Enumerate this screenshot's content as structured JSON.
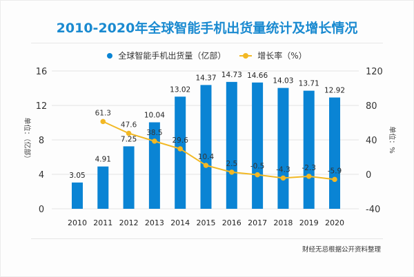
{
  "chart_data": {
    "type": "bar",
    "title": "2010-2020年全球智能手机出货量统计及增长情况",
    "categories": [
      "2010",
      "2011",
      "2012",
      "2013",
      "2014",
      "2015",
      "2016",
      "2017",
      "2018",
      "2019",
      "2020"
    ],
    "series": [
      {
        "name": "全球智能手机出货量（亿部）",
        "type": "bar",
        "axis": "left",
        "color": "#0a84d4",
        "values": [
          3.05,
          4.91,
          7.25,
          10.04,
          13.02,
          14.37,
          14.73,
          14.66,
          14.03,
          13.71,
          12.92
        ],
        "labels": [
          "3.05",
          "4.91",
          "7.25",
          "10.04",
          "13.02",
          "14.37",
          "14.73",
          "14.66",
          "14.03",
          "13.71",
          "12.92"
        ]
      },
      {
        "name": "增长率（%）",
        "type": "line",
        "axis": "right",
        "color": "#f2b824",
        "values": [
          null,
          61.3,
          47.6,
          38.5,
          29.6,
          10.4,
          2.5,
          -0.5,
          -4.3,
          -2.3,
          -5.9
        ],
        "labels": [
          "",
          "61.3",
          "47.6",
          "38.5",
          "29.6",
          "10.4",
          "2.5",
          "-0.5",
          "-4.3",
          "-2.3",
          "-5.9"
        ]
      }
    ],
    "left_axis": {
      "label": "单位：（亿部）",
      "ylim": [
        0,
        16
      ],
      "ticks": [
        "0",
        "4",
        "8",
        "12",
        "16"
      ]
    },
    "right_axis": {
      "label": "单位：%",
      "ylim": [
        -40,
        120
      ],
      "ticks": [
        "-40",
        "0",
        "40",
        "80",
        "120"
      ]
    },
    "xlabel": "",
    "grid": true,
    "legend_position": "top-center"
  },
  "legend": {
    "bar_label": "全球智能手机出货量（亿部）",
    "line_label": "增长率（%）"
  },
  "footer": {
    "source": "财经无忌根据公开资料整理"
  }
}
